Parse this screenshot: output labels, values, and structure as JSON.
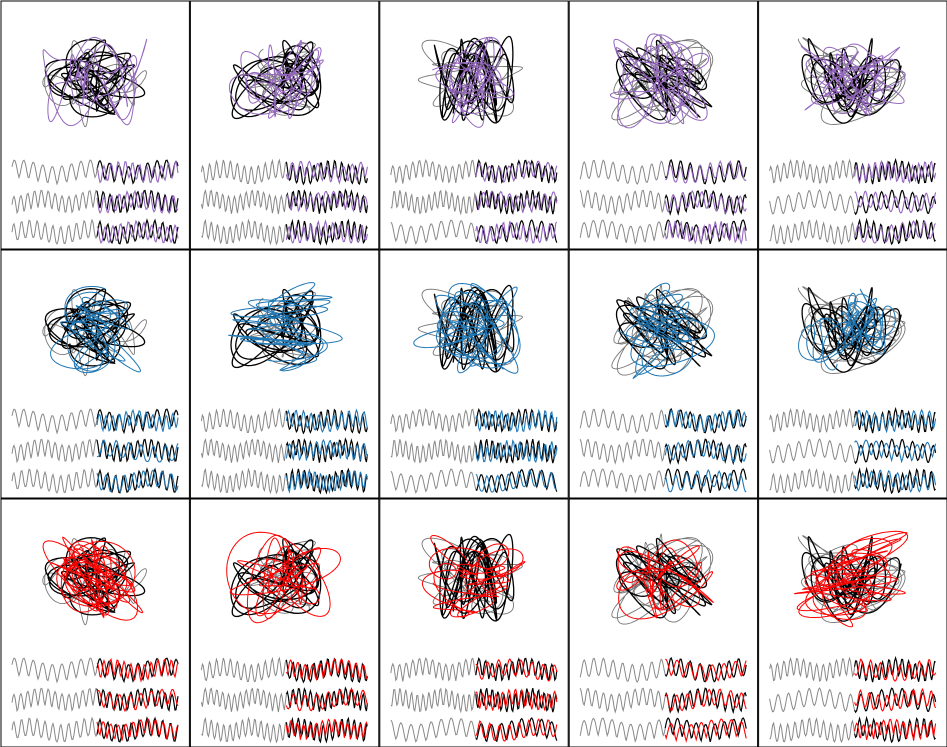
{
  "figure": {
    "columns": 5,
    "rows": [
      {
        "color": "#9467bd"
      },
      {
        "color": "#1f77b4"
      },
      {
        "color": "#ff0000"
      }
    ]
  }
}
